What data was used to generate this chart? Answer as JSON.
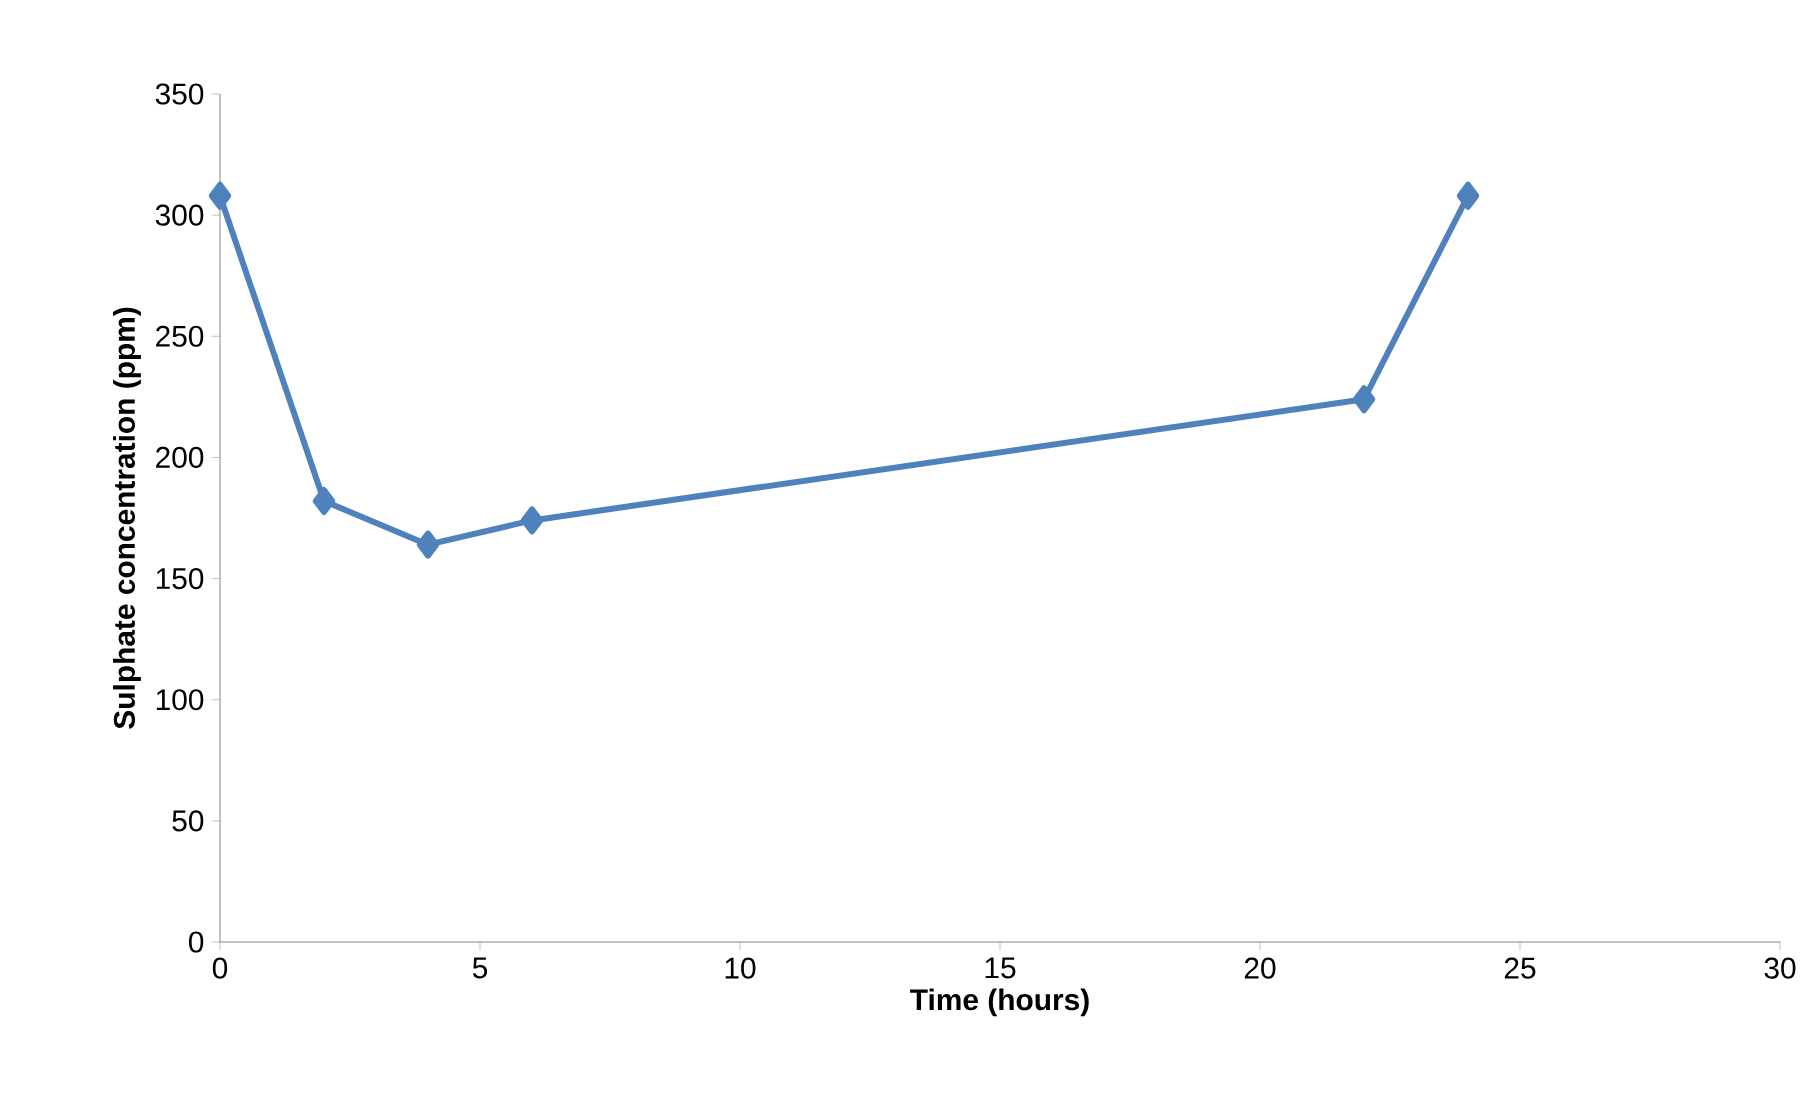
{
  "chart_data": {
    "type": "line",
    "xlabel": "Time (hours)",
    "ylabel": "Sulphate concentration (ppm)",
    "x": [
      0,
      2,
      4,
      6,
      22,
      24
    ],
    "series": [
      {
        "color": "#4f81bd",
        "values": [
          308,
          182,
          164,
          174,
          224,
          308
        ]
      }
    ],
    "xlim": [
      0,
      30
    ],
    "xticks": [
      0,
      5,
      10,
      15,
      20,
      25,
      30
    ],
    "ylim": [
      0,
      350
    ],
    "yticks": [
      0,
      50,
      100,
      150,
      200,
      250,
      300,
      350
    ],
    "marker": "diamond",
    "line_style": "solid"
  }
}
